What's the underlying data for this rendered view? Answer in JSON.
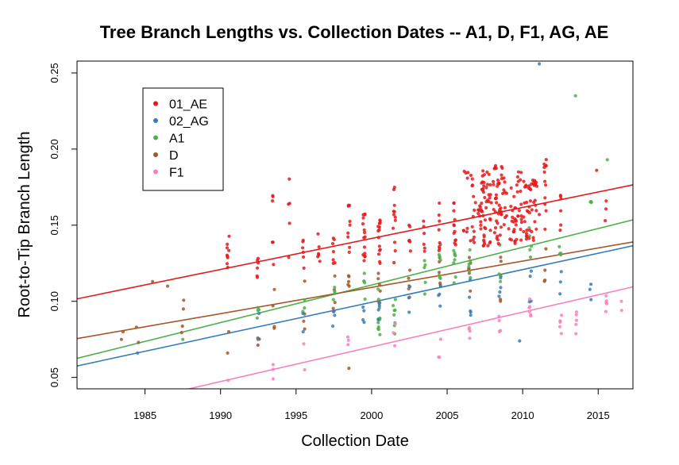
{
  "chart_data": {
    "type": "scatter",
    "title": "Tree Branch Lengths vs. Collection Dates -- A1, D, F1, AG, AE",
    "xlabel": "Collection Date",
    "ylabel": "Root-to-Tip Branch Length",
    "xlim": [
      1980.5,
      2017.3
    ],
    "ylim": [
      0.0425,
      0.2578
    ],
    "x_ticks": [
      "1985",
      "1990",
      "1995",
      "2000",
      "2005",
      "2010",
      "2015"
    ],
    "y_ticks": [
      "0.05",
      "0.10",
      "0.15",
      "0.20",
      "0.25"
    ],
    "grid": false,
    "legend_position": "top-left",
    "series": [
      {
        "name": "01_AE",
        "color": "#e41a1c",
        "regression": {
          "x": [
            1980.5,
            2017.3
          ],
          "y": [
            0.1016,
            0.1765
          ]
        },
        "clusters": [
          {
            "x": 1990.5,
            "y_min": 0.112,
            "y_max": 0.16,
            "count": 9
          },
          {
            "x": 1992.5,
            "y_min": 0.115,
            "y_max": 0.131,
            "count": 6
          },
          {
            "x": 1993.5,
            "y_min": 0.117,
            "y_max": 0.171,
            "count": 6
          },
          {
            "x": 1994.5,
            "y_min": 0.118,
            "y_max": 0.183,
            "count": 5
          },
          {
            "x": 1995.5,
            "y_min": 0.118,
            "y_max": 0.141,
            "count": 6
          },
          {
            "x": 1996.5,
            "y_min": 0.12,
            "y_max": 0.15,
            "count": 6
          },
          {
            "x": 1997.5,
            "y_min": 0.12,
            "y_max": 0.145,
            "count": 7
          },
          {
            "x": 1998.5,
            "y_min": 0.122,
            "y_max": 0.167,
            "count": 9
          },
          {
            "x": 1999.5,
            "y_min": 0.12,
            "y_max": 0.16,
            "count": 15
          },
          {
            "x": 2000.5,
            "y_min": 0.122,
            "y_max": 0.156,
            "count": 15
          },
          {
            "x": 2001.5,
            "y_min": 0.125,
            "y_max": 0.177,
            "count": 12
          },
          {
            "x": 2002.5,
            "y_min": 0.128,
            "y_max": 0.152,
            "count": 6
          },
          {
            "x": 2003.5,
            "y_min": 0.13,
            "y_max": 0.155,
            "count": 6
          },
          {
            "x": 2004.5,
            "y_min": 0.133,
            "y_max": 0.173,
            "count": 8
          },
          {
            "x": 2005.5,
            "y_min": 0.132,
            "y_max": 0.17,
            "count": 12
          },
          {
            "x": 2006.5,
            "y_min": 0.138,
            "y_max": 0.191,
            "count": 22
          },
          {
            "x": 2007.5,
            "y_min": 0.136,
            "y_max": 0.186,
            "count": 55
          },
          {
            "x": 2008.5,
            "y_min": 0.137,
            "y_max": 0.19,
            "count": 50
          },
          {
            "x": 2009.5,
            "y_min": 0.138,
            "y_max": 0.185,
            "count": 40
          },
          {
            "x": 2010.5,
            "y_min": 0.14,
            "y_max": 0.18,
            "count": 45
          },
          {
            "x": 2011.5,
            "y_min": 0.143,
            "y_max": 0.196,
            "count": 12
          },
          {
            "x": 2012.5,
            "y_min": 0.146,
            "y_max": 0.173,
            "count": 6
          },
          {
            "x": 2015.5,
            "y_min": 0.15,
            "y_max": 0.166,
            "count": 3
          }
        ],
        "points": [
          {
            "x": 2014.9,
            "y": 0.186
          },
          {
            "x": 2011.1,
            "y": 0.157
          }
        ]
      },
      {
        "name": "02_AG",
        "color": "#377eb8",
        "regression": {
          "x": [
            1980.5,
            2017.3
          ],
          "y": [
            0.0575,
            0.1365
          ]
        },
        "clusters": [
          {
            "x": 1992.5,
            "y_min": 0.075,
            "y_max": 0.092,
            "count": 2
          },
          {
            "x": 1995.5,
            "y_min": 0.08,
            "y_max": 0.092,
            "count": 2
          },
          {
            "x": 1997.5,
            "y_min": 0.083,
            "y_max": 0.098,
            "count": 3
          },
          {
            "x": 1999.5,
            "y_min": 0.085,
            "y_max": 0.1,
            "count": 4
          },
          {
            "x": 2000.5,
            "y_min": 0.087,
            "y_max": 0.104,
            "count": 4
          },
          {
            "x": 2002.5,
            "y_min": 0.085,
            "y_max": 0.11,
            "count": 3
          },
          {
            "x": 2004.5,
            "y_min": 0.088,
            "y_max": 0.11,
            "count": 4
          },
          {
            "x": 2006.5,
            "y_min": 0.09,
            "y_max": 0.116,
            "count": 5
          },
          {
            "x": 2008.5,
            "y_min": 0.095,
            "y_max": 0.12,
            "count": 4
          },
          {
            "x": 2010.5,
            "y_min": 0.095,
            "y_max": 0.127,
            "count": 4
          },
          {
            "x": 2012.5,
            "y_min": 0.098,
            "y_max": 0.12,
            "count": 3
          },
          {
            "x": 2014.5,
            "y_min": 0.1,
            "y_max": 0.118,
            "count": 3
          }
        ],
        "points": [
          {
            "x": 2011.1,
            "y": 0.256
          },
          {
            "x": 1984.5,
            "y": 0.066
          },
          {
            "x": 2009.8,
            "y": 0.074
          }
        ]
      },
      {
        "name": "A1",
        "color": "#4daf4a",
        "regression": {
          "x": [
            1980.5,
            2017.3
          ],
          "y": [
            0.0625,
            0.1535
          ]
        },
        "clusters": [
          {
            "x": 1992.5,
            "y_min": 0.08,
            "y_max": 0.1,
            "count": 4
          },
          {
            "x": 1995.5,
            "y_min": 0.093,
            "y_max": 0.105,
            "count": 3
          },
          {
            "x": 1997.5,
            "y_min": 0.094,
            "y_max": 0.118,
            "count": 4
          },
          {
            "x": 1999.5,
            "y_min": 0.096,
            "y_max": 0.12,
            "count": 5
          },
          {
            "x": 2000.5,
            "y_min": 0.078,
            "y_max": 0.11,
            "count": 12
          },
          {
            "x": 2001.5,
            "y_min": 0.078,
            "y_max": 0.103,
            "count": 8
          },
          {
            "x": 2003.5,
            "y_min": 0.1,
            "y_max": 0.13,
            "count": 5
          },
          {
            "x": 2004.5,
            "y_min": 0.11,
            "y_max": 0.138,
            "count": 6
          },
          {
            "x": 2005.5,
            "y_min": 0.112,
            "y_max": 0.134,
            "count": 8
          },
          {
            "x": 2006.5,
            "y_min": 0.11,
            "y_max": 0.145,
            "count": 6
          },
          {
            "x": 2008.5,
            "y_min": 0.11,
            "y_max": 0.142,
            "count": 5
          },
          {
            "x": 2010.5,
            "y_min": 0.115,
            "y_max": 0.15,
            "count": 5
          },
          {
            "x": 2012.5,
            "y_min": 0.13,
            "y_max": 0.155,
            "count": 4
          },
          {
            "x": 2014.5,
            "y_min": 0.16,
            "y_max": 0.172,
            "count": 3
          }
        ],
        "points": [
          {
            "x": 2013.5,
            "y": 0.235
          },
          {
            "x": 2015.6,
            "y": 0.193
          },
          {
            "x": 1987.5,
            "y": 0.075
          }
        ]
      },
      {
        "name": "D",
        "color": "#a65628",
        "regression": {
          "x": [
            1980.5,
            2017.3
          ],
          "y": [
            0.0755,
            0.139
          ]
        },
        "clusters": [
          {
            "x": 1983.5,
            "y_min": 0.075,
            "y_max": 0.08,
            "count": 2
          },
          {
            "x": 1984.5,
            "y_min": 0.073,
            "y_max": 0.083,
            "count": 2
          },
          {
            "x": 1987.5,
            "y_min": 0.078,
            "y_max": 0.107,
            "count": 4
          },
          {
            "x": 1990.5,
            "y_min": 0.066,
            "y_max": 0.08,
            "count": 2
          },
          {
            "x": 1992.5,
            "y_min": 0.07,
            "y_max": 0.105,
            "count": 3
          },
          {
            "x": 1993.5,
            "y_min": 0.075,
            "y_max": 0.11,
            "count": 4
          },
          {
            "x": 1995.5,
            "y_min": 0.08,
            "y_max": 0.115,
            "count": 4
          },
          {
            "x": 1997.5,
            "y_min": 0.09,
            "y_max": 0.12,
            "count": 5
          },
          {
            "x": 1998.5,
            "y_min": 0.095,
            "y_max": 0.125,
            "count": 5
          },
          {
            "x": 2000.5,
            "y_min": 0.095,
            "y_max": 0.13,
            "count": 6
          },
          {
            "x": 2002.5,
            "y_min": 0.1,
            "y_max": 0.135,
            "count": 5
          },
          {
            "x": 2004.5,
            "y_min": 0.105,
            "y_max": 0.138,
            "count": 6
          },
          {
            "x": 2006.5,
            "y_min": 0.105,
            "y_max": 0.142,
            "count": 6
          },
          {
            "x": 2008.5,
            "y_min": 0.098,
            "y_max": 0.14,
            "count": 5
          },
          {
            "x": 2011.5,
            "y_min": 0.11,
            "y_max": 0.135,
            "count": 4
          }
        ],
        "points": [
          {
            "x": 1985.5,
            "y": 0.113
          },
          {
            "x": 1986.5,
            "y": 0.11
          },
          {
            "x": 1998.5,
            "y": 0.056
          }
        ]
      },
      {
        "name": "F1",
        "color": "#f781bf",
        "regression": {
          "x": [
            1987.9,
            2017.3
          ],
          "y": [
            0.0425,
            0.1095
          ]
        },
        "clusters": [
          {
            "x": 1993.5,
            "y_min": 0.048,
            "y_max": 0.065,
            "count": 3
          },
          {
            "x": 1995.5,
            "y_min": 0.055,
            "y_max": 0.072,
            "count": 2
          },
          {
            "x": 1998.5,
            "y_min": 0.06,
            "y_max": 0.08,
            "count": 3
          },
          {
            "x": 2001.5,
            "y_min": 0.065,
            "y_max": 0.088,
            "count": 3
          },
          {
            "x": 2004.5,
            "y_min": 0.057,
            "y_max": 0.078,
            "count": 3
          },
          {
            "x": 2006.5,
            "y_min": 0.073,
            "y_max": 0.09,
            "count": 4
          },
          {
            "x": 2008.5,
            "y_min": 0.075,
            "y_max": 0.095,
            "count": 4
          },
          {
            "x": 2010.5,
            "y_min": 0.088,
            "y_max": 0.102,
            "count": 6
          },
          {
            "x": 2012.5,
            "y_min": 0.078,
            "y_max": 0.1,
            "count": 5
          },
          {
            "x": 2013.5,
            "y_min": 0.072,
            "y_max": 0.098,
            "count": 5
          },
          {
            "x": 2015.5,
            "y_min": 0.092,
            "y_max": 0.11,
            "count": 5
          },
          {
            "x": 2016.5,
            "y_min": 0.094,
            "y_max": 0.1,
            "count": 2
          }
        ],
        "points": [
          {
            "x": 1990.5,
            "y": 0.048
          }
        ]
      }
    ]
  }
}
